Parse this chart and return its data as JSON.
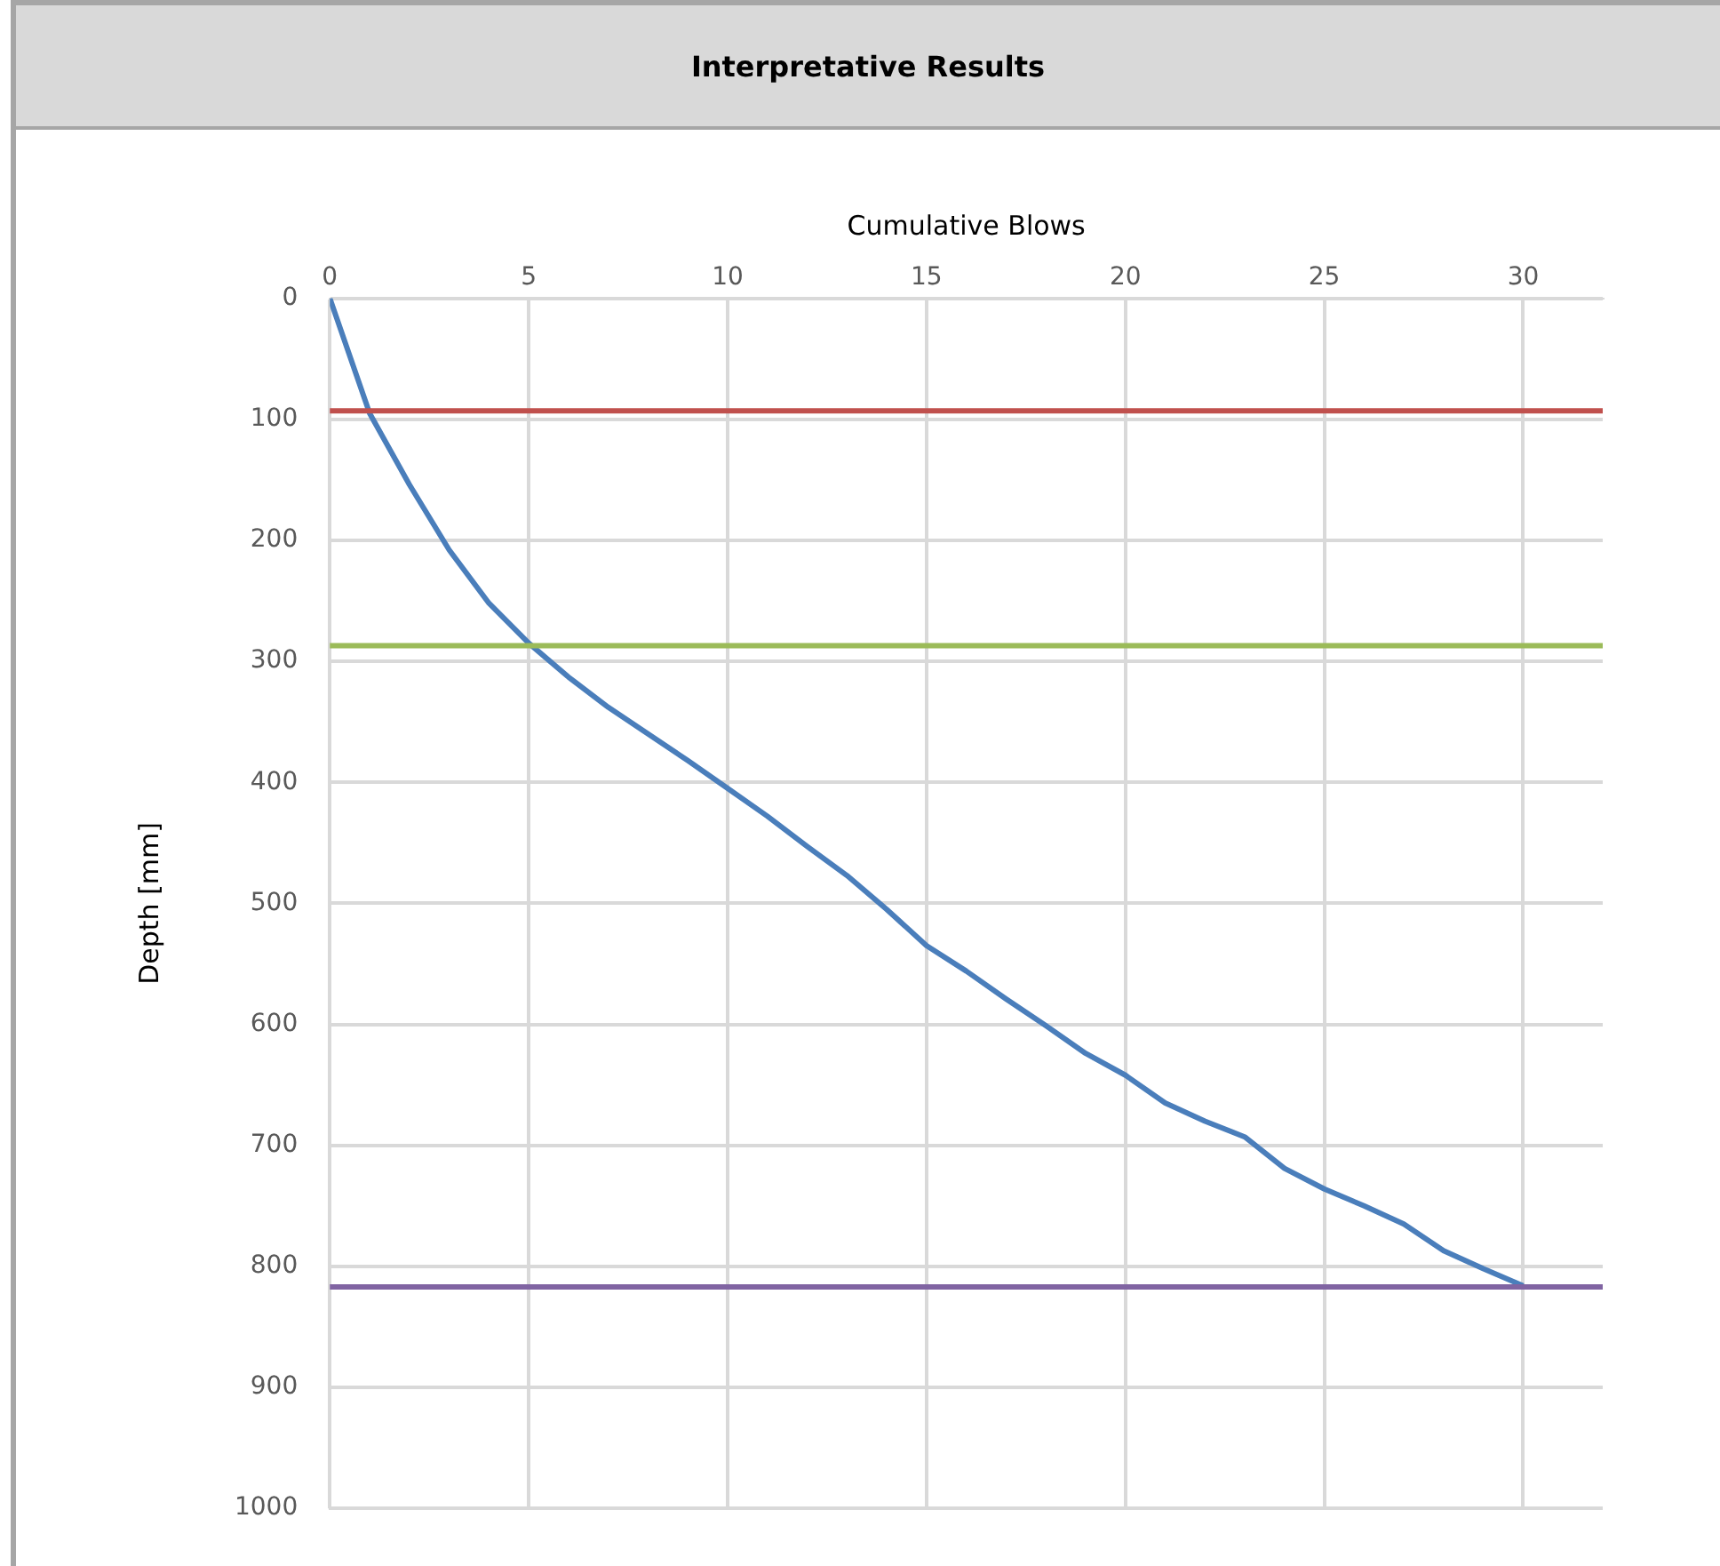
{
  "chart_data": {
    "type": "line",
    "title": "Interpretative Results",
    "xlabel": "Cumulative Blows",
    "ylabel": "Depth [mm]",
    "x": [
      0,
      1,
      2,
      3,
      4,
      5,
      6,
      7,
      8,
      9,
      10,
      11,
      12,
      13,
      14,
      15,
      16,
      17,
      18,
      19,
      20,
      21,
      22,
      23,
      24,
      25,
      26,
      27,
      28,
      29,
      30
    ],
    "series": [
      {
        "color": "#4a7ebb",
        "values": [
          0,
          95,
          154,
          208,
          252,
          285,
          313,
          338,
          360,
          382,
          405,
          428,
          453,
          477,
          505,
          535,
          556,
          579,
          601,
          624,
          642,
          665,
          680,
          693,
          719,
          736,
          750,
          765,
          787,
          802,
          816
        ]
      }
    ],
    "xlim": [
      0,
      32
    ],
    "xticks": [
      0,
      5,
      10,
      15,
      20,
      25,
      30
    ],
    "ylim": [
      1000,
      0
    ],
    "yticks": [
      0,
      100,
      200,
      300,
      400,
      500,
      600,
      700,
      800,
      900,
      1000
    ],
    "ref_lines": [
      {
        "axis": "y",
        "value": 93,
        "color": "#c0504d"
      },
      {
        "axis": "y",
        "value": 287,
        "color": "#9bbb59"
      },
      {
        "axis": "y",
        "value": 817,
        "color": "#8064a2"
      }
    ],
    "grid": true,
    "legend": false,
    "marker": "none",
    "line_style": "solid"
  }
}
